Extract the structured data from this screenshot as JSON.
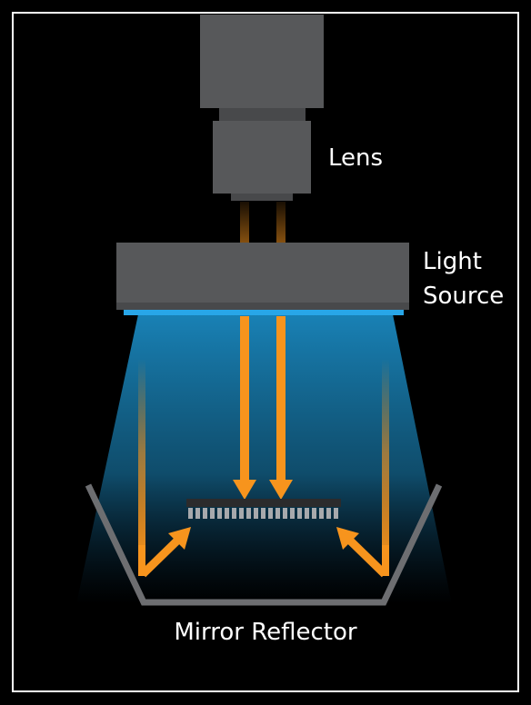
{
  "labels": {
    "lens": "Lens",
    "light_source_line1": "Light",
    "light_source_line2": "Source",
    "mirror_reflector": "Mirror Reflector"
  },
  "colors": {
    "background": "#000000",
    "frame": "#ffffff",
    "housing": "#57585a",
    "housing_dark": "#48494b",
    "light_emitter": "#28a6e8",
    "beam_blue": "#1a88bf",
    "arrow_orange": "#f7941d",
    "mirror": "#6d6e71",
    "chip_body": "#2b2b2c",
    "chip_pins": "#a7a9ac",
    "text": "#ffffff"
  }
}
